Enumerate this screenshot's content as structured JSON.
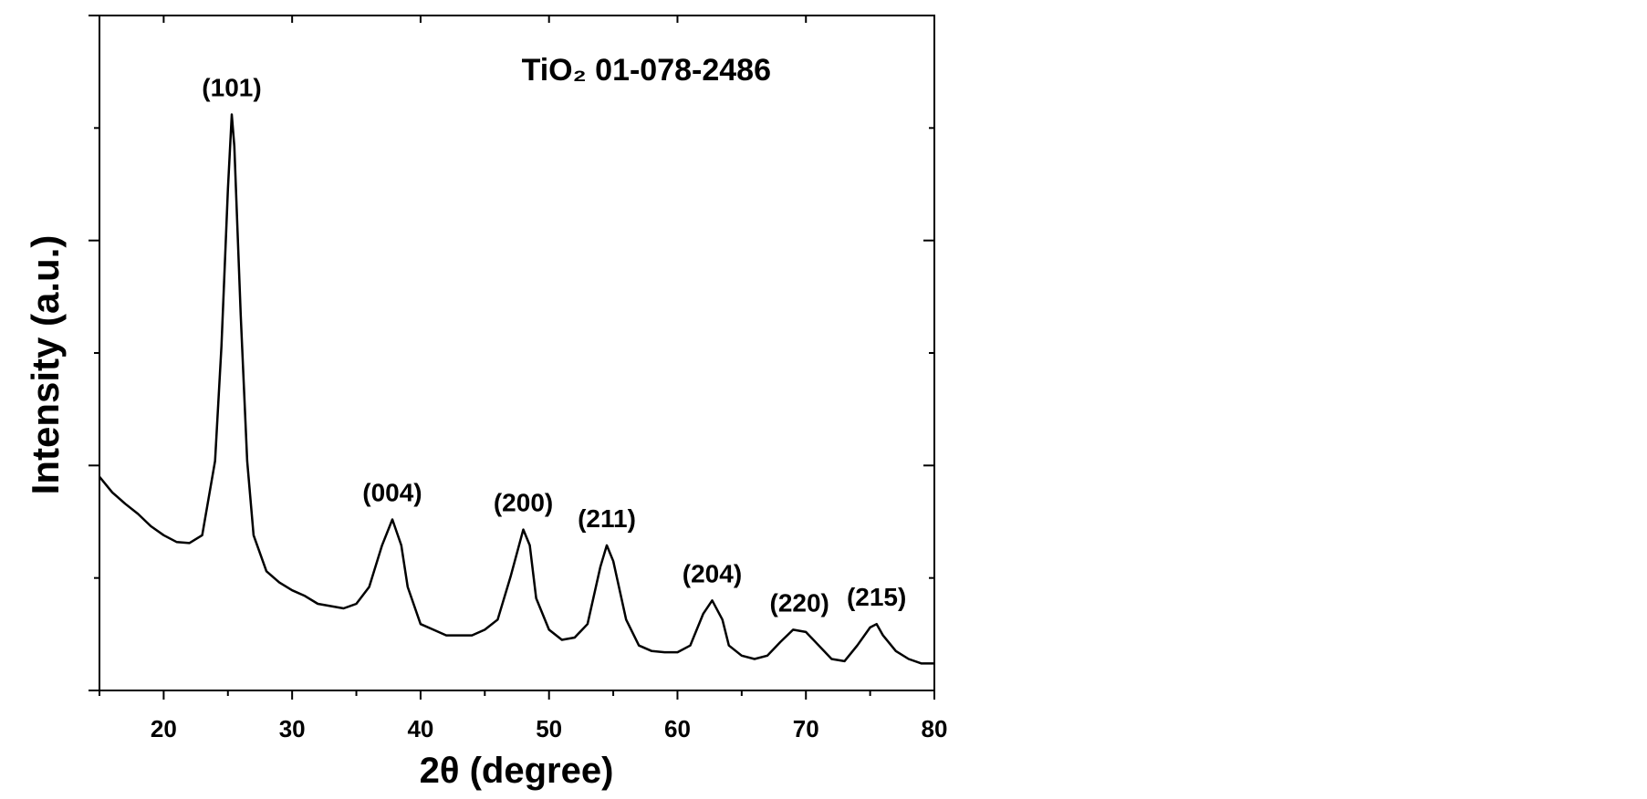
{
  "chart_data": {
    "type": "line",
    "title": "TiO₂ 01-078-2486",
    "x_label": "2θ  (degree)",
    "y_label": "Intensity (a.u.)",
    "color": "#000000",
    "x": [
      15,
      16,
      17,
      18,
      19,
      20,
      21,
      22,
      23,
      24,
      24.5,
      25,
      25.3,
      25.5,
      26,
      26.5,
      27,
      28,
      29,
      30,
      31,
      32,
      33,
      34,
      35,
      36,
      37,
      37.8,
      38.5,
      39,
      40,
      41,
      42,
      43,
      44,
      45,
      46,
      47,
      48,
      48.5,
      49,
      50,
      51,
      52,
      53,
      54,
      54.5,
      55,
      56,
      57,
      58,
      59,
      60,
      61,
      62,
      62.7,
      63.5,
      64,
      65,
      66,
      67,
      68,
      69,
      70,
      71,
      72,
      73,
      74,
      75,
      75.5,
      76,
      77,
      78,
      79,
      80
    ],
    "values": [
      1.9,
      1.76,
      1.66,
      1.57,
      1.46,
      1.38,
      1.32,
      1.31,
      1.38,
      2.04,
      3.06,
      4.46,
      5.12,
      4.84,
      3.34,
      2.04,
      1.38,
      1.06,
      0.96,
      0.89,
      0.84,
      0.77,
      0.75,
      0.73,
      0.77,
      0.92,
      1.29,
      1.52,
      1.29,
      0.92,
      0.59,
      0.54,
      0.49,
      0.49,
      0.49,
      0.54,
      0.63,
      1.01,
      1.43,
      1.29,
      0.82,
      0.54,
      0.45,
      0.47,
      0.59,
      1.1,
      1.29,
      1.15,
      0.63,
      0.4,
      0.35,
      0.34,
      0.34,
      0.4,
      0.68,
      0.8,
      0.63,
      0.4,
      0.31,
      0.28,
      0.31,
      0.43,
      0.54,
      0.52,
      0.4,
      0.28,
      0.26,
      0.4,
      0.56,
      0.59,
      0.49,
      0.35,
      0.28,
      0.24,
      0.24
    ],
    "peaks": [
      {
        "label": "(101)",
        "x": 25.3
      },
      {
        "label": "(004)",
        "x": 37.8
      },
      {
        "label": "(200)",
        "x": 48.0
      },
      {
        "label": "(211)",
        "x": 54.5
      },
      {
        "label": "(204)",
        "x": 62.7
      },
      {
        "label": "(220)",
        "x": 69.5
      },
      {
        "label": "(215)",
        "x": 75.5
      }
    ],
    "xlim": [
      15,
      80
    ],
    "xticks": [
      20,
      30,
      40,
      50,
      60,
      70,
      80
    ],
    "xminorticks": [
      15,
      25,
      35,
      45,
      55,
      65,
      75
    ],
    "ylim": [
      0,
      6
    ],
    "yticks": [
      0,
      2,
      4,
      6
    ],
    "yminorticks": [
      1,
      3,
      5
    ]
  }
}
